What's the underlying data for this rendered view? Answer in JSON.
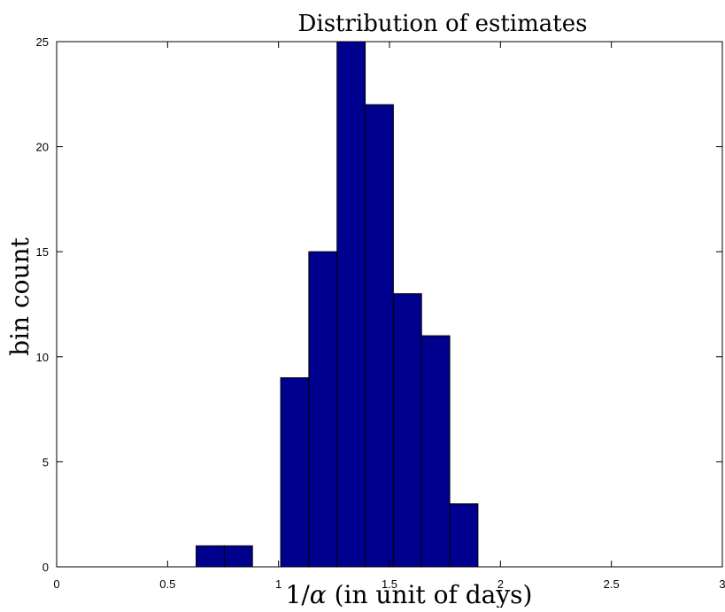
{
  "chart_data": {
    "type": "bar",
    "title": "Distribution of estimates",
    "xlabel": "1/α (in unit of days)",
    "ylabel": "bin count",
    "xlim": [
      0,
      3
    ],
    "ylim": [
      0,
      25
    ],
    "xticks": [
      0,
      0.5,
      1,
      1.5,
      2,
      2.5,
      3
    ],
    "xtick_labels": [
      "0",
      "0.5",
      "1",
      "1.5",
      "2",
      "2.5",
      "3"
    ],
    "yticks": [
      0,
      5,
      10,
      15,
      20,
      25
    ],
    "ytick_labels": [
      "0",
      "5",
      "10",
      "15",
      "20",
      "25"
    ],
    "bin_width": 0.127,
    "bin_centers": [
      0.692,
      0.819,
      1.073,
      1.2,
      1.327,
      1.454,
      1.581,
      1.708,
      1.835
    ],
    "values": [
      1,
      1,
      9,
      15,
      25,
      22,
      13,
      11,
      3
    ],
    "grid": false,
    "bar_color": "#00008f",
    "edge_color": "#000000"
  }
}
